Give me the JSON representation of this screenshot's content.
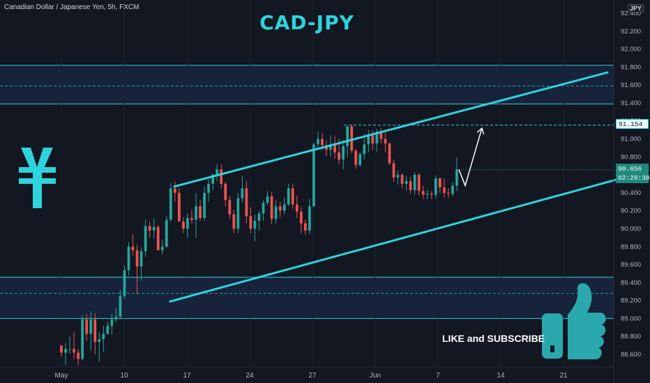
{
  "header": {
    "symbol_label": "Canadian Dollar / Japanese Yen, 5h, FXCM",
    "title": "CAD-JPY",
    "currency": "JPY"
  },
  "price_tags": {
    "level": "91.154",
    "last_price": "90.656",
    "countdown": "02:29:30"
  },
  "cta": "LIKE and SUBSCRIBE",
  "icons": [
    "yen-icon",
    "thumbs-up-icon"
  ],
  "colors": {
    "background": "#131722",
    "accent": "#2dd4dd",
    "up_candle": "#26a69a",
    "down_candle": "#ef5350",
    "zone_fill": "#16233a",
    "last_price_bg": "#1f8a7d"
  },
  "chart_data": {
    "type": "candlestick",
    "title": "CAD-JPY",
    "y_axis": {
      "range": [
        88.45,
        92.5
      ],
      "ticks": [
        92.4,
        92.2,
        92.0,
        91.8,
        91.6,
        91.4,
        91.2,
        91.0,
        90.8,
        90.6,
        90.4,
        90.2,
        90.0,
        89.8,
        89.6,
        89.4,
        89.2,
        89.0,
        88.8,
        88.6
      ],
      "tick_labels": [
        "92.400",
        "92.200",
        "92.000",
        "91.800",
        "91.600",
        "91.400",
        "91.200",
        "91.000",
        "90.800",
        "90.600",
        "90.400",
        "90.200",
        "90.000",
        "89.800",
        "89.600",
        "89.400",
        "89.200",
        "89.000",
        "88.800",
        "88.600"
      ]
    },
    "x_axis": {
      "ticks": [
        0,
        6,
        12,
        18,
        24,
        30,
        36,
        42,
        48
      ],
      "tick_labels": [
        "May",
        "10",
        "17",
        "24",
        "27",
        "Jun",
        "7",
        "14",
        "21"
      ]
    },
    "candle_range": [
      0,
      37.8
    ],
    "ohlc": [
      [
        88.7,
        88.7,
        88.58,
        88.62
      ],
      [
        88.62,
        88.73,
        88.48,
        88.66
      ],
      [
        88.66,
        88.8,
        88.61,
        88.66
      ],
      [
        88.66,
        88.85,
        88.55,
        88.62
      ],
      [
        88.62,
        88.66,
        88.48,
        88.55
      ],
      [
        88.55,
        89.04,
        88.53,
        88.99
      ],
      [
        88.99,
        89.05,
        88.75,
        88.83
      ],
      [
        88.83,
        89.08,
        88.64,
        88.99
      ],
      [
        88.99,
        89.06,
        88.6,
        88.74
      ],
      [
        88.74,
        88.85,
        88.52,
        88.77
      ],
      [
        88.77,
        88.92,
        88.63,
        88.83
      ],
      [
        88.83,
        88.97,
        88.82,
        88.92
      ],
      [
        88.92,
        89.05,
        88.82,
        88.99
      ],
      [
        88.99,
        89.12,
        88.96,
        89.02
      ],
      [
        89.02,
        89.32,
        89.0,
        89.25
      ],
      [
        89.25,
        89.59,
        89.22,
        89.54
      ],
      [
        89.54,
        89.85,
        89.48,
        89.8
      ],
      [
        89.8,
        89.94,
        89.7,
        89.76
      ],
      [
        89.76,
        89.82,
        89.27,
        89.58
      ],
      [
        89.58,
        89.79,
        89.42,
        89.75
      ],
      [
        89.75,
        90.1,
        89.69,
        90.03
      ],
      [
        90.03,
        90.08,
        89.9,
        89.98
      ],
      [
        89.98,
        90.12,
        89.89,
        90.02
      ],
      [
        90.02,
        90.04,
        89.77,
        89.76
      ],
      [
        89.76,
        89.88,
        89.71,
        89.8
      ],
      [
        89.8,
        90.14,
        89.79,
        90.1
      ],
      [
        90.1,
        90.51,
        90.08,
        90.45
      ],
      [
        90.45,
        90.53,
        90.3,
        90.4
      ],
      [
        90.4,
        90.45,
        90.1,
        90.08
      ],
      [
        90.08,
        90.13,
        89.95,
        90.0
      ],
      [
        90.0,
        90.17,
        89.9,
        90.12
      ],
      [
        90.12,
        90.21,
        90.06,
        90.1
      ],
      [
        90.1,
        90.4,
        89.9,
        90.25
      ],
      [
        90.25,
        90.32,
        90.09,
        90.12
      ],
      [
        90.12,
        90.47,
        90.09,
        90.4
      ],
      [
        90.4,
        90.55,
        90.3,
        90.5
      ],
      [
        90.5,
        90.62,
        90.43,
        90.6
      ],
      [
        90.6,
        90.72,
        90.53,
        90.66
      ],
      [
        90.66,
        90.72,
        90.45,
        90.5
      ],
      [
        90.5,
        90.52,
        90.25,
        90.32
      ],
      [
        90.32,
        90.36,
        90.11,
        90.16
      ],
      [
        90.16,
        90.21,
        89.95,
        90.0
      ],
      [
        90.0,
        90.4,
        89.95,
        90.34
      ],
      [
        90.34,
        90.59,
        90.29,
        90.45
      ],
      [
        90.45,
        90.53,
        90.06,
        90.14
      ],
      [
        90.14,
        90.24,
        89.95,
        90.0
      ],
      [
        90.0,
        90.16,
        89.86,
        90.09
      ],
      [
        90.09,
        90.2,
        89.98,
        90.17
      ],
      [
        90.17,
        90.32,
        90.09,
        90.29
      ],
      [
        90.29,
        90.42,
        90.26,
        90.36
      ],
      [
        90.36,
        90.41,
        90.05,
        90.11
      ],
      [
        90.11,
        90.32,
        90.06,
        90.25
      ],
      [
        90.25,
        90.3,
        90.13,
        90.2
      ],
      [
        90.2,
        90.35,
        90.16,
        90.27
      ],
      [
        90.27,
        90.5,
        90.25,
        90.45
      ],
      [
        90.45,
        90.5,
        90.22,
        90.27
      ],
      [
        90.27,
        90.37,
        90.12,
        90.19
      ],
      [
        90.19,
        90.24,
        89.95,
        90.06
      ],
      [
        90.06,
        90.1,
        89.93,
        89.98
      ],
      [
        89.98,
        90.33,
        89.94,
        90.25
      ],
      [
        90.25,
        90.96,
        90.24,
        90.94
      ],
      [
        90.94,
        91.08,
        90.91,
        91.0
      ],
      [
        91.0,
        91.07,
        90.87,
        90.93
      ],
      [
        90.93,
        90.99,
        90.81,
        90.88
      ],
      [
        90.88,
        91.04,
        90.8,
        90.94
      ],
      [
        90.94,
        91.03,
        90.78,
        90.85
      ],
      [
        90.85,
        91.0,
        90.72,
        90.77
      ],
      [
        90.77,
        90.99,
        90.66,
        90.92
      ],
      [
        90.92,
        91.15,
        90.8,
        91.14
      ],
      [
        91.14,
        91.16,
        90.84,
        90.87
      ],
      [
        90.87,
        90.89,
        90.67,
        90.71
      ],
      [
        90.71,
        90.85,
        90.69,
        90.83
      ],
      [
        90.83,
        91.06,
        90.77,
        90.94
      ],
      [
        90.94,
        91.1,
        90.85,
        91.04
      ],
      [
        91.04,
        91.1,
        90.88,
        90.95
      ],
      [
        90.95,
        91.11,
        90.86,
        91.08
      ],
      [
        91.08,
        91.12,
        90.95,
        91.0
      ],
      [
        91.0,
        91.07,
        90.85,
        90.95
      ],
      [
        90.95,
        90.96,
        90.71,
        90.73
      ],
      [
        90.73,
        90.77,
        90.52,
        90.57
      ],
      [
        90.57,
        90.65,
        90.49,
        90.6
      ],
      [
        90.6,
        90.62,
        90.45,
        90.5
      ],
      [
        90.5,
        90.59,
        90.42,
        90.53
      ],
      [
        90.53,
        90.58,
        90.39,
        90.43
      ],
      [
        90.43,
        90.63,
        90.38,
        90.6
      ],
      [
        90.6,
        90.62,
        90.37,
        90.42
      ],
      [
        90.42,
        90.48,
        90.33,
        90.38
      ],
      [
        90.38,
        90.44,
        90.33,
        90.39
      ],
      [
        90.39,
        90.42,
        90.33,
        90.38
      ],
      [
        90.38,
        90.59,
        90.34,
        90.56
      ],
      [
        90.56,
        90.57,
        90.4,
        90.46
      ],
      [
        90.46,
        90.56,
        90.35,
        90.4
      ],
      [
        90.4,
        90.45,
        90.34,
        90.39
      ],
      [
        90.39,
        90.52,
        90.36,
        90.48
      ],
      [
        90.48,
        90.79,
        90.42,
        90.66
      ]
    ],
    "channel": {
      "upper": [
        [
          10.8,
          90.47
        ],
        [
          52.2,
          91.74
        ]
      ],
      "lower": [
        [
          10.4,
          89.19
        ],
        [
          53.8,
          90.57
        ]
      ]
    },
    "zones": [
      {
        "top": 91.82,
        "bottom": 91.39,
        "mid": 91.59
      },
      {
        "top": 89.46,
        "bottom": 89.0,
        "mid": 89.28
      }
    ],
    "dashed_levels": [
      91.154
    ],
    "projection": [
      [
        38.0,
        90.66
      ],
      [
        38.6,
        90.48
      ],
      [
        40.2,
        91.12
      ]
    ],
    "last_price": 90.656
  }
}
